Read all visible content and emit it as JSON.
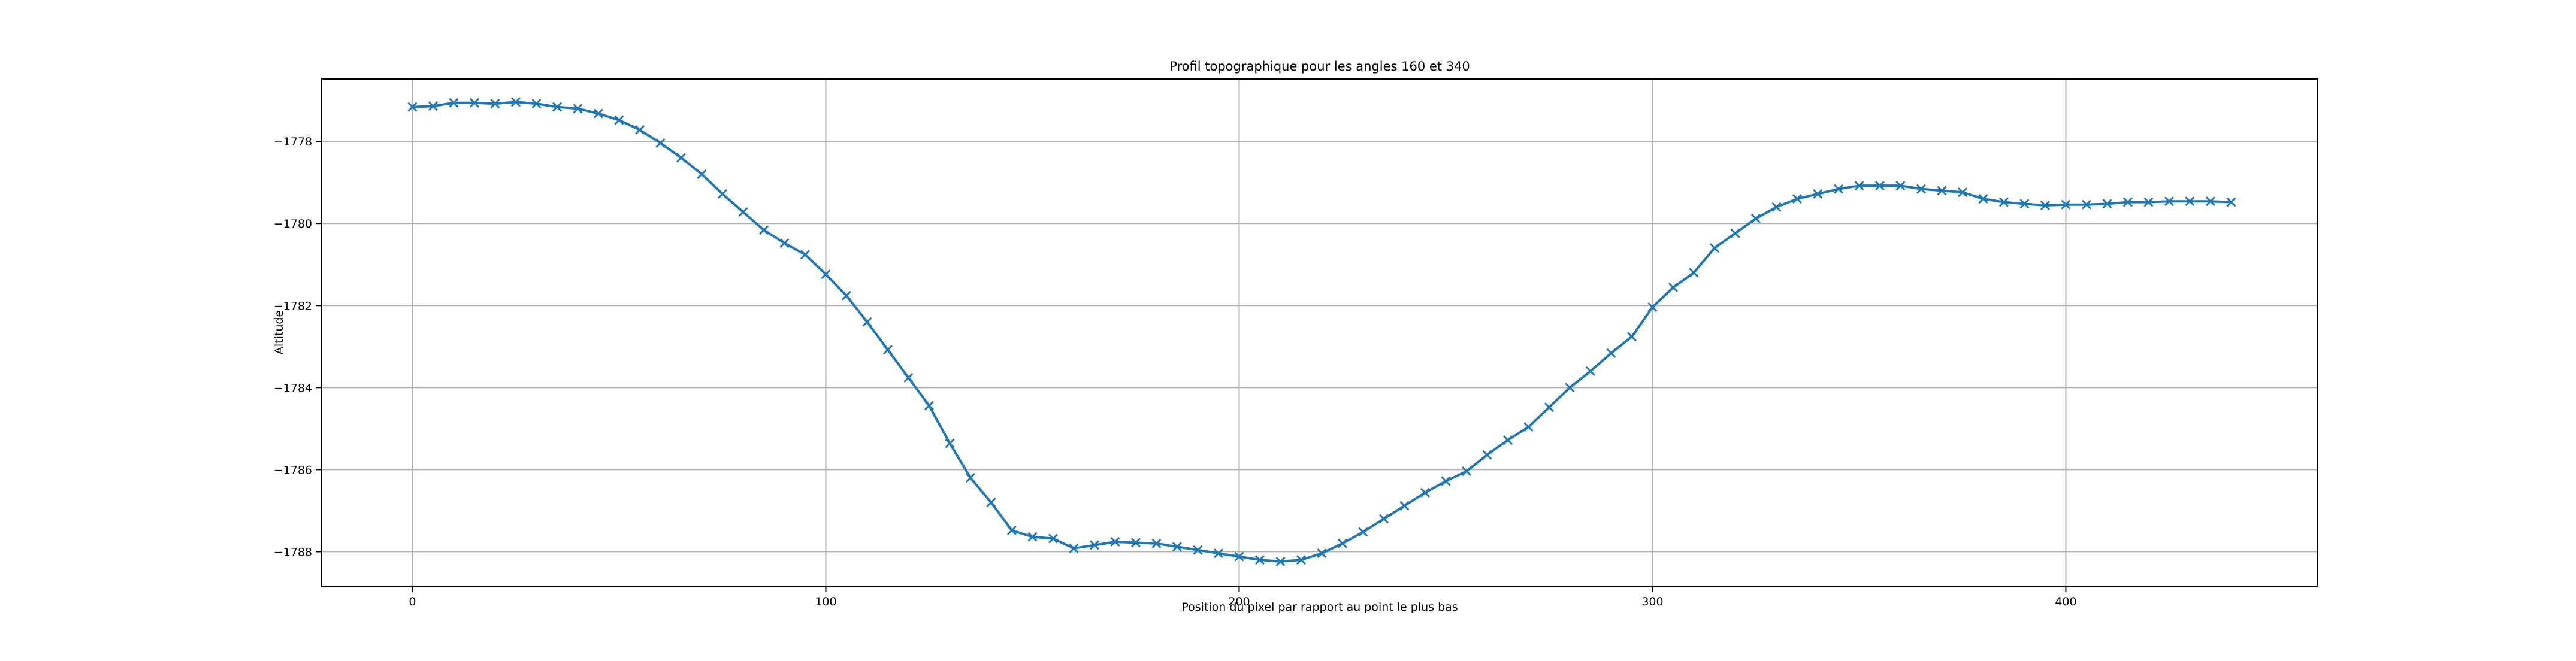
{
  "chart_data": {
    "type": "line",
    "title": "Profil topographique pour les angles 160 et 340",
    "x_label": "Position du pixel par rapport au point le plus bas",
    "y_label": "Altitude",
    "x": [
      0,
      5,
      10,
      15,
      20,
      25,
      30,
      35,
      40,
      45,
      50,
      55,
      60,
      65,
      70,
      75,
      80,
      85,
      90,
      95,
      100,
      105,
      110,
      115,
      120,
      125,
      130,
      135,
      140,
      145,
      150,
      155,
      160,
      165,
      170,
      175,
      180,
      185,
      190,
      195,
      200,
      205,
      210,
      215,
      220,
      225,
      230,
      235,
      240,
      245,
      250,
      255,
      260,
      265,
      270,
      275,
      280,
      285,
      290,
      295,
      300,
      305,
      310,
      315,
      320,
      325,
      330,
      335,
      340,
      345,
      350,
      355,
      360,
      365,
      370,
      375,
      380,
      385,
      390,
      395,
      400,
      405,
      410,
      415,
      420,
      425,
      430,
      435,
      440
    ],
    "series": [
      {
        "color": "#1f77b4",
        "marker": "x",
        "values": [
          -1777.16,
          -1777.14,
          -1777.06,
          -1777.06,
          -1777.08,
          -1777.04,
          -1777.08,
          -1777.16,
          -1777.2,
          -1777.32,
          -1777.48,
          -1777.72,
          -1778.04,
          -1778.4,
          -1778.8,
          -1779.28,
          -1779.72,
          -1780.16,
          -1780.48,
          -1780.76,
          -1781.24,
          -1781.76,
          -1782.4,
          -1783.08,
          -1783.76,
          -1784.44,
          -1785.36,
          -1786.2,
          -1786.8,
          -1787.48,
          -1787.64,
          -1787.68,
          -1787.92,
          -1787.84,
          -1787.76,
          -1787.78,
          -1787.8,
          -1787.88,
          -1787.96,
          -1788.04,
          -1788.12,
          -1788.2,
          -1788.24,
          -1788.2,
          -1788.04,
          -1787.8,
          -1787.52,
          -1787.2,
          -1786.88,
          -1786.56,
          -1786.28,
          -1786.04,
          -1785.64,
          -1785.28,
          -1784.96,
          -1784.48,
          -1784.0,
          -1783.6,
          -1783.16,
          -1782.76,
          -1782.04,
          -1781.56,
          -1781.2,
          -1780.6,
          -1780.24,
          -1779.88,
          -1779.6,
          -1779.4,
          -1779.28,
          -1779.16,
          -1779.08,
          -1779.08,
          -1779.08,
          -1779.16,
          -1779.2,
          -1779.24,
          -1779.4,
          -1779.48,
          -1779.52,
          -1779.56,
          -1779.54,
          -1779.54,
          -1779.52,
          -1779.48,
          -1779.48,
          -1779.46,
          -1779.46,
          -1779.46,
          -1779.48
        ]
      }
    ],
    "xlim": [
      -21.95,
      460.95
    ],
    "ylim": [
      -1788.84,
      -1776.48
    ],
    "xticks": [
      0,
      100,
      200,
      300,
      400
    ],
    "yticks": [
      {
        "value": -1788,
        "label": "−1788"
      },
      {
        "value": -1786,
        "label": "−1786"
      },
      {
        "value": -1784,
        "label": "−1784"
      },
      {
        "value": -1782,
        "label": "−1782"
      },
      {
        "value": -1780,
        "label": "−1780"
      },
      {
        "value": -1778,
        "label": "−1778"
      }
    ],
    "grid": true
  }
}
